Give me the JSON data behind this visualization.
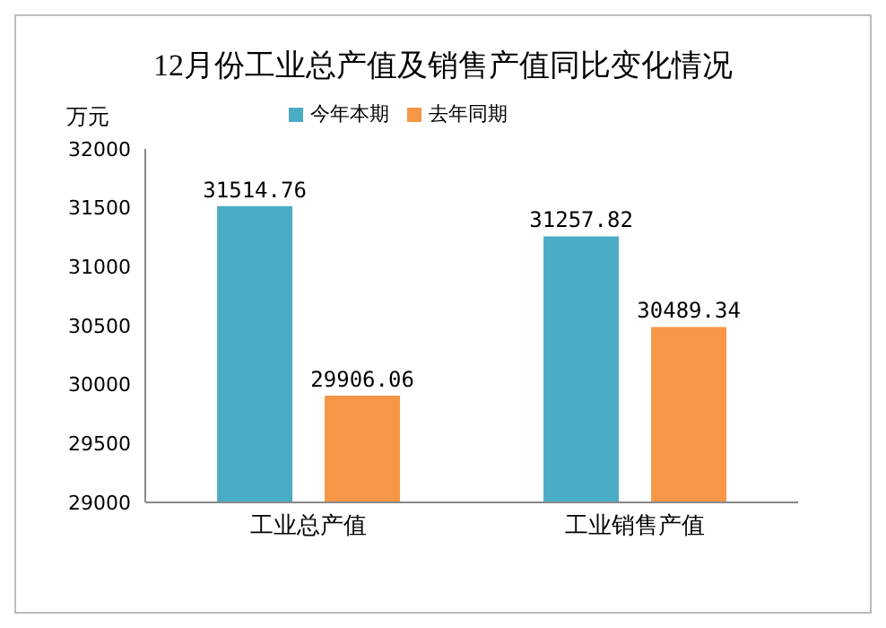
{
  "chart_data": {
    "type": "bar",
    "title": "12月份工业总产值及销售产值同比变化情况",
    "ylabel": "万元",
    "categories": [
      "工业总产值",
      "工业销售产值"
    ],
    "series": [
      {
        "name": "今年本期",
        "color": "#4bacc6",
        "values": [
          31514.76,
          31257.82
        ]
      },
      {
        "name": "去年同期",
        "color": "#f79646",
        "values": [
          29906.06,
          30489.34
        ]
      }
    ],
    "ylim": [
      29000,
      32000
    ],
    "yticks": [
      29000,
      29500,
      30000,
      30500,
      31000,
      31500,
      32000
    ],
    "data_labels": true,
    "legend": "top",
    "grid": false
  }
}
